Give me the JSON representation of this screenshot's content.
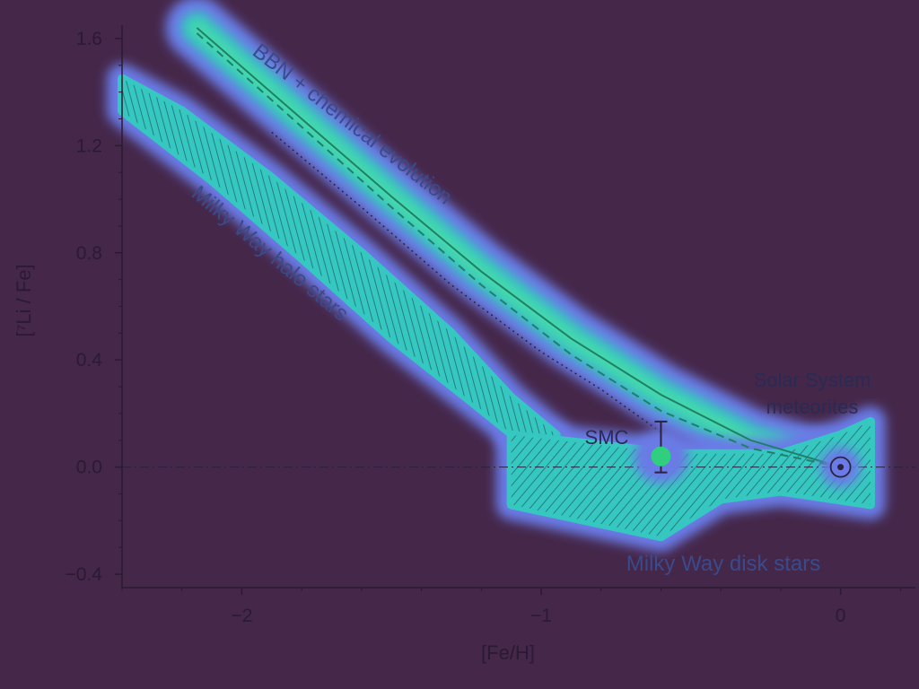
{
  "chart_data": {
    "type": "line",
    "xlabel": "[Fe/H]",
    "ylabel": "[⁷Li / Fe]",
    "xlim": [
      -2.4,
      0.25
    ],
    "ylim": [
      -0.45,
      1.65
    ],
    "xticks": [
      {
        "value": -2,
        "label": "−2"
      },
      {
        "value": -1,
        "label": "−1"
      },
      {
        "value": 0,
        "label": "0"
      }
    ],
    "yticks": [
      {
        "value": 1.6,
        "label": "1.6"
      },
      {
        "value": 1.2,
        "label": "1.2"
      },
      {
        "value": 0.8,
        "label": "0.8"
      },
      {
        "value": 0.4,
        "label": "0.4"
      },
      {
        "value": 0.0,
        "label": "0.0"
      },
      {
        "value": -0.4,
        "label": "−0.4"
      }
    ],
    "reference_line_y": 0.0,
    "grid": false,
    "series": [
      {
        "name": "BBN + chemical evolution",
        "style": "solid",
        "x": [
          -2.15,
          -1.8,
          -1.5,
          -1.2,
          -0.9,
          -0.6,
          -0.3,
          0.0
        ],
        "y": [
          1.64,
          1.3,
          1.01,
          0.73,
          0.48,
          0.27,
          0.1,
          0.0
        ]
      },
      {
        "name": "model-dashed",
        "style": "dashed",
        "x": [
          -2.15,
          -1.8,
          -1.5,
          -1.2,
          -0.9,
          -0.6,
          -0.3,
          0.0
        ],
        "y": [
          1.62,
          1.27,
          0.97,
          0.68,
          0.42,
          0.21,
          0.07,
          0.0
        ]
      },
      {
        "name": "model-dotted",
        "style": "dotted",
        "x": [
          -1.9,
          -1.6,
          -1.3,
          -1.0,
          -0.8,
          -0.6
        ],
        "y": [
          1.25,
          0.97,
          0.68,
          0.43,
          0.29,
          0.13
        ]
      }
    ],
    "regions": [
      {
        "label": "Milky Way halo stars",
        "polygon": [
          [
            -2.4,
            1.45
          ],
          [
            -2.2,
            1.33
          ],
          [
            -1.9,
            1.08
          ],
          [
            -1.6,
            0.8
          ],
          [
            -1.3,
            0.5
          ],
          [
            -1.1,
            0.26
          ],
          [
            -0.95,
            0.12
          ],
          [
            -1.05,
            0.08
          ],
          [
            -1.25,
            0.26
          ],
          [
            -1.5,
            0.48
          ],
          [
            -1.8,
            0.78
          ],
          [
            -2.1,
            1.07
          ],
          [
            -2.4,
            1.33
          ]
        ]
      },
      {
        "label": "Milky Way disk stars",
        "polygon": [
          [
            -1.1,
            0.12
          ],
          [
            -0.55,
            0.05
          ],
          [
            -0.45,
            0.05
          ],
          [
            -0.2,
            0.05
          ],
          [
            0.0,
            0.12
          ],
          [
            0.1,
            0.17
          ],
          [
            0.1,
            -0.14
          ],
          [
            -0.2,
            -0.09
          ],
          [
            -0.4,
            -0.12
          ],
          [
            -0.6,
            -0.26
          ],
          [
            -1.1,
            -0.14
          ]
        ]
      }
    ],
    "points": [
      {
        "label": "SMC",
        "x": -0.6,
        "y": 0.04,
        "yerr_low": 0.06,
        "yerr_high": 0.13,
        "color": "#2fcf7f"
      },
      {
        "label": "Solar System meteorites",
        "x": 0.0,
        "y": 0.0,
        "symbol": "sun"
      }
    ],
    "annotations": {
      "bbn": "BBN + chemical evolution",
      "halo": "Milky Way halo stars",
      "disk": "Milky Way disk stars",
      "smc": "SMC",
      "solar_line1": "Solar System",
      "solar_line2": "meteorites"
    },
    "colors": {
      "background": "#45274a",
      "heat_outer": "#6b7ae6",
      "heat_inner": "#36c8c0",
      "heat_core": "#4fe0a0",
      "axis": "#2a1a33"
    }
  }
}
